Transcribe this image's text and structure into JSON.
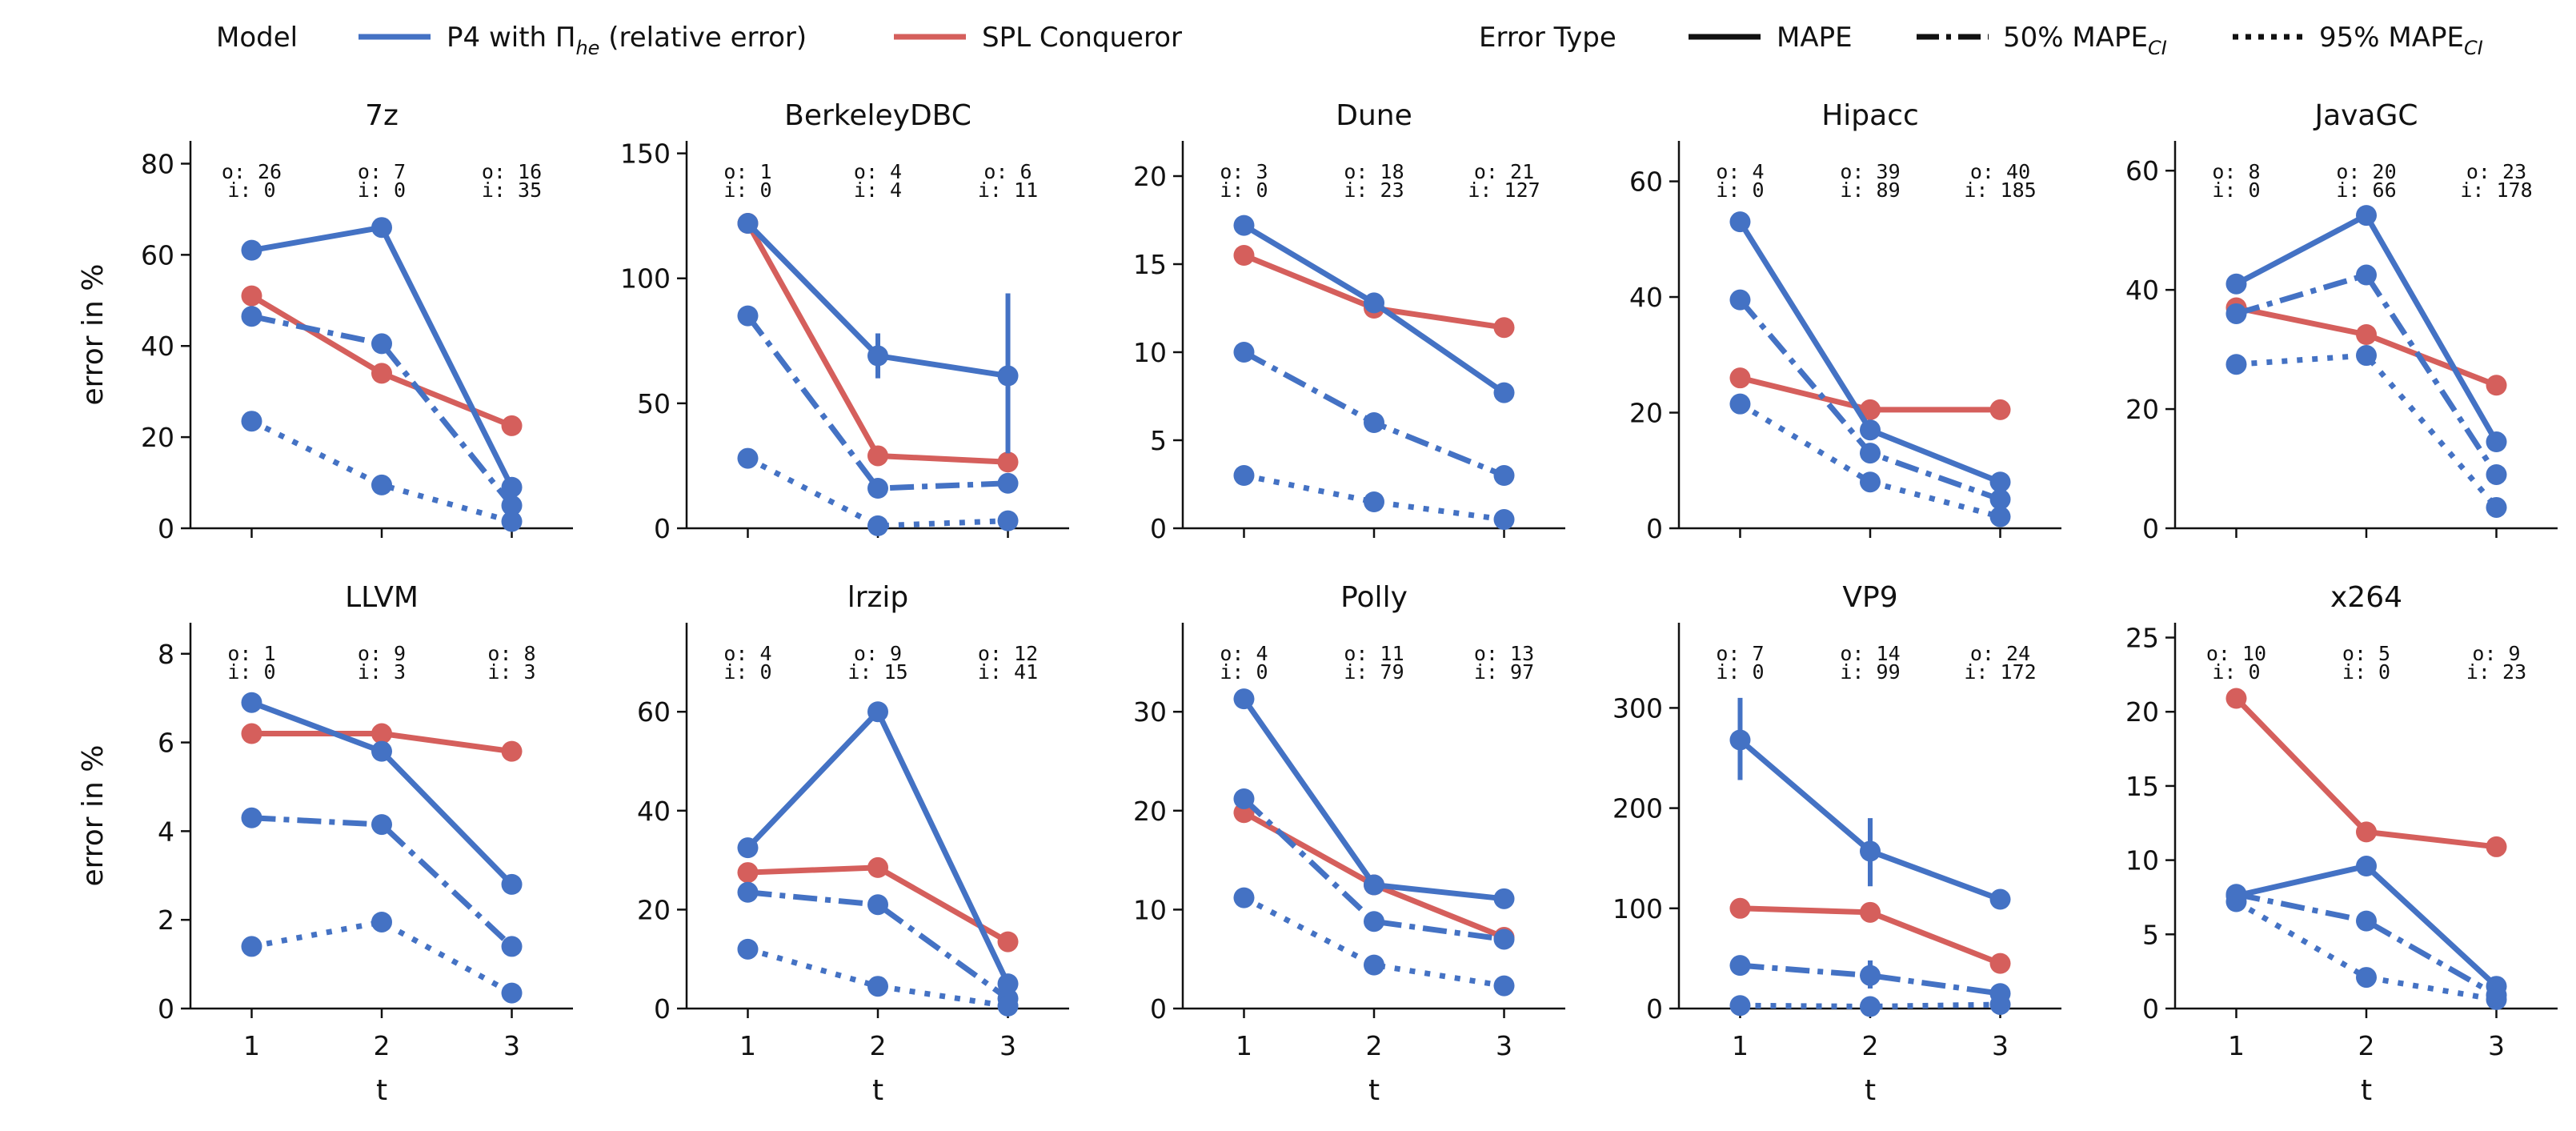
{
  "colors": {
    "p4": "#4472C4",
    "spl": "#D55F5C",
    "axis": "#111111",
    "text": "#111111"
  },
  "legend": {
    "model_title": "Model",
    "p4_label_pre": "P4 with Π",
    "p4_label_sub": "he",
    "p4_label_post": " (relative error)",
    "spl_label": "SPL Conqueror",
    "error_title": "Error Type",
    "mape_label": "MAPE",
    "ci50_label_pre": "50% MAPE",
    "ci50_label_sub": "CI",
    "ci95_label_pre": "95% MAPE",
    "ci95_label_sub": "CI"
  },
  "shared": {
    "xlabel": "t",
    "ylabel": "error in %",
    "x_ticks": [
      "1",
      "2",
      "3"
    ]
  },
  "chart_data": [
    {
      "type": "line",
      "title": "7z",
      "ylim": [
        0,
        85
      ],
      "yticks": [
        0,
        20,
        40,
        60,
        80
      ],
      "counts": [
        {
          "o": "o: 26",
          "i": "i: 0"
        },
        {
          "o": "o: 7",
          "i": "i: 0"
        },
        {
          "o": "o: 16",
          "i": "i: 35"
        }
      ],
      "series": [
        {
          "model": "P4",
          "error": "MAPE",
          "values": [
            61,
            66,
            9
          ]
        },
        {
          "model": "P4",
          "error": "50% MAPE CI",
          "values": [
            46.5,
            40.5,
            5
          ]
        },
        {
          "model": "P4",
          "error": "95% MAPE CI",
          "values": [
            23.5,
            9.5,
            1.5
          ]
        },
        {
          "model": "SPL",
          "error": "MAPE",
          "values": [
            51,
            34,
            22.5
          ]
        }
      ],
      "errorbars": []
    },
    {
      "type": "line",
      "title": "BerkeleyDBC",
      "ylim": [
        0,
        155
      ],
      "yticks": [
        0,
        50,
        100,
        150
      ],
      "counts": [
        {
          "o": "o: 1",
          "i": "i: 0"
        },
        {
          "o": "o: 4",
          "i": "i: 4"
        },
        {
          "o": "o: 6",
          "i": "i: 11"
        }
      ],
      "series": [
        {
          "model": "P4",
          "error": "MAPE",
          "values": [
            122,
            69,
            61
          ]
        },
        {
          "model": "P4",
          "error": "50% MAPE CI",
          "values": [
            85,
            16,
            18
          ]
        },
        {
          "model": "P4",
          "error": "95% MAPE CI",
          "values": [
            28,
            1,
            3
          ]
        },
        {
          "model": "SPL",
          "error": "MAPE",
          "values": [
            122,
            29,
            26.5
          ]
        }
      ],
      "errorbars": [
        {
          "x": 2,
          "low": 60,
          "high": 78
        },
        {
          "x": 3,
          "low": 30,
          "high": 94
        }
      ]
    },
    {
      "type": "line",
      "title": "Dune",
      "ylim": [
        0,
        22
      ],
      "yticks": [
        0,
        5,
        10,
        15,
        20
      ],
      "counts": [
        {
          "o": "o: 3",
          "i": "i: 0"
        },
        {
          "o": "o: 18",
          "i": "i: 23"
        },
        {
          "o": "o: 21",
          "i": "i: 127"
        }
      ],
      "series": [
        {
          "model": "P4",
          "error": "MAPE",
          "values": [
            17.2,
            12.8,
            7.7
          ]
        },
        {
          "model": "P4",
          "error": "50% MAPE CI",
          "values": [
            10,
            6,
            3
          ]
        },
        {
          "model": "P4",
          "error": "95% MAPE CI",
          "values": [
            3,
            1.5,
            0.5
          ]
        },
        {
          "model": "SPL",
          "error": "MAPE",
          "values": [
            15.5,
            12.5,
            11.4
          ]
        }
      ],
      "errorbars": []
    },
    {
      "type": "line",
      "title": "Hipacc",
      "ylim": [
        0,
        67
      ],
      "yticks": [
        0,
        20,
        40,
        60
      ],
      "counts": [
        {
          "o": "o: 4",
          "i": "i: 0"
        },
        {
          "o": "o: 39",
          "i": "i: 89"
        },
        {
          "o": "o: 40",
          "i": "i: 185"
        }
      ],
      "series": [
        {
          "model": "P4",
          "error": "MAPE",
          "values": [
            53,
            17,
            8
          ]
        },
        {
          "model": "P4",
          "error": "50% MAPE CI",
          "values": [
            39.5,
            13,
            5
          ]
        },
        {
          "model": "P4",
          "error": "95% MAPE CI",
          "values": [
            21.5,
            8,
            2
          ]
        },
        {
          "model": "SPL",
          "error": "MAPE",
          "values": [
            26,
            20.5,
            20.5
          ]
        }
      ],
      "errorbars": []
    },
    {
      "type": "line",
      "title": "JavaGC",
      "ylim": [
        0,
        65
      ],
      "yticks": [
        0,
        20,
        40,
        60
      ],
      "counts": [
        {
          "o": "o: 8",
          "i": "i: 0"
        },
        {
          "o": "o: 20",
          "i": "i: 66"
        },
        {
          "o": "o: 23",
          "i": "i: 178"
        }
      ],
      "series": [
        {
          "model": "P4",
          "error": "MAPE",
          "values": [
            41,
            52.5,
            14.5
          ]
        },
        {
          "model": "P4",
          "error": "50% MAPE CI",
          "values": [
            36,
            42.5,
            9
          ]
        },
        {
          "model": "P4",
          "error": "95% MAPE CI",
          "values": [
            27.5,
            29,
            3.5
          ]
        },
        {
          "model": "SPL",
          "error": "MAPE",
          "values": [
            37,
            32.5,
            24
          ]
        }
      ],
      "errorbars": []
    },
    {
      "type": "line",
      "title": "LLVM",
      "ylim": [
        0,
        8.7
      ],
      "yticks": [
        0,
        2,
        4,
        6,
        8
      ],
      "counts": [
        {
          "o": "o: 1",
          "i": "i: 0"
        },
        {
          "o": "o: 9",
          "i": "i: 3"
        },
        {
          "o": "o: 8",
          "i": "i: 3"
        }
      ],
      "series": [
        {
          "model": "P4",
          "error": "MAPE",
          "values": [
            6.9,
            5.8,
            2.8
          ]
        },
        {
          "model": "P4",
          "error": "50% MAPE CI",
          "values": [
            4.3,
            4.15,
            1.4
          ]
        },
        {
          "model": "P4",
          "error": "95% MAPE CI",
          "values": [
            1.4,
            1.95,
            0.35
          ]
        },
        {
          "model": "SPL",
          "error": "MAPE",
          "values": [
            6.2,
            6.2,
            5.8
          ]
        }
      ],
      "errorbars": []
    },
    {
      "type": "line",
      "title": "lrzip",
      "ylim": [
        0,
        78
      ],
      "yticks": [
        0,
        20,
        40,
        60
      ],
      "counts": [
        {
          "o": "o: 4",
          "i": "i: 0"
        },
        {
          "o": "o: 9",
          "i": "i: 15"
        },
        {
          "o": "o: 12",
          "i": "i: 41"
        }
      ],
      "series": [
        {
          "model": "P4",
          "error": "MAPE",
          "values": [
            32.5,
            60,
            5
          ]
        },
        {
          "model": "P4",
          "error": "50% MAPE CI",
          "values": [
            23.5,
            21,
            2
          ]
        },
        {
          "model": "P4",
          "error": "95% MAPE CI",
          "values": [
            12,
            4.5,
            0.5
          ]
        },
        {
          "model": "SPL",
          "error": "MAPE",
          "values": [
            27.5,
            28.5,
            13.5
          ]
        }
      ],
      "errorbars": []
    },
    {
      "type": "line",
      "title": "Polly",
      "ylim": [
        0,
        39
      ],
      "yticks": [
        0,
        10,
        20,
        30
      ],
      "counts": [
        {
          "o": "o: 4",
          "i": "i: 0"
        },
        {
          "o": "o: 11",
          "i": "i: 79"
        },
        {
          "o": "o: 13",
          "i": "i: 97"
        }
      ],
      "series": [
        {
          "model": "P4",
          "error": "MAPE",
          "values": [
            31.3,
            12.5,
            11.1
          ]
        },
        {
          "model": "P4",
          "error": "50% MAPE CI",
          "values": [
            21.2,
            8.8,
            7
          ]
        },
        {
          "model": "P4",
          "error": "95% MAPE CI",
          "values": [
            11.2,
            4.4,
            2.3
          ]
        },
        {
          "model": "SPL",
          "error": "MAPE",
          "values": [
            19.8,
            12.5,
            7.2
          ]
        }
      ],
      "errorbars": []
    },
    {
      "type": "line",
      "title": "VP9",
      "ylim": [
        0,
        385
      ],
      "yticks": [
        0,
        100,
        200,
        300
      ],
      "counts": [
        {
          "o": "o: 7",
          "i": "i: 0"
        },
        {
          "o": "o: 14",
          "i": "i: 99"
        },
        {
          "o": "o: 24",
          "i": "i: 172"
        }
      ],
      "series": [
        {
          "model": "P4",
          "error": "MAPE",
          "values": [
            268,
            157,
            109
          ]
        },
        {
          "model": "P4",
          "error": "50% MAPE CI",
          "values": [
            43,
            33,
            15
          ]
        },
        {
          "model": "P4",
          "error": "95% MAPE CI",
          "values": [
            3,
            2,
            4
          ]
        },
        {
          "model": "SPL",
          "error": "MAPE",
          "values": [
            100,
            96,
            45
          ]
        }
      ],
      "errorbars": [
        {
          "x": 1,
          "low": 228,
          "high": 310
        },
        {
          "x": 2,
          "low": 122,
          "high": 190
        },
        {
          "x": 2,
          "low": 20,
          "high": 48
        }
      ]
    },
    {
      "type": "line",
      "title": "x264",
      "ylim": [
        0,
        26
      ],
      "yticks": [
        0,
        5,
        10,
        15,
        20,
        25
      ],
      "counts": [
        {
          "o": "o: 10",
          "i": "i: 0"
        },
        {
          "o": "o: 5",
          "i": "i: 0"
        },
        {
          "o": "o: 9",
          "i": "i: 23"
        }
      ],
      "series": [
        {
          "model": "P4",
          "error": "MAPE",
          "values": [
            7.6,
            9.6,
            1.5
          ]
        },
        {
          "model": "P4",
          "error": "50% MAPE CI",
          "values": [
            7.7,
            5.9,
            0.9
          ]
        },
        {
          "model": "P4",
          "error": "95% MAPE CI",
          "values": [
            7.2,
            2.1,
            0.6
          ]
        },
        {
          "model": "SPL",
          "error": "MAPE",
          "values": [
            20.9,
            11.9,
            10.9
          ]
        }
      ],
      "errorbars": []
    }
  ]
}
